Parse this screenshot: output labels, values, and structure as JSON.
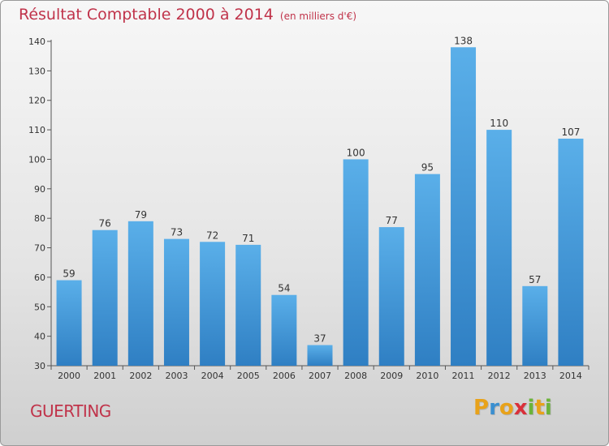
{
  "header": {
    "title": "Résultat Comptable 2000 à 2014",
    "unit": "(en milliers d'€)"
  },
  "footer": {
    "place": "GUERTING",
    "logo_letters": [
      {
        "ch": "P",
        "color": "#e8a21a"
      },
      {
        "ch": "r",
        "color": "#3a8fd0"
      },
      {
        "ch": "o",
        "color": "#e8a21a"
      },
      {
        "ch": "x",
        "color": "#d9303a"
      },
      {
        "ch": "i",
        "color": "#6bb33a"
      },
      {
        "ch": "t",
        "color": "#e8a21a"
      },
      {
        "ch": "i",
        "color": "#6bb33a"
      }
    ]
  },
  "chart_data": {
    "type": "bar",
    "title": "Résultat Comptable 2000 à 2014",
    "subtitle": "(en milliers d'€)",
    "xlabel": "",
    "ylabel": "",
    "categories": [
      "2000",
      "2001",
      "2002",
      "2003",
      "2004",
      "2005",
      "2006",
      "2007",
      "2008",
      "2009",
      "2010",
      "2011",
      "2012",
      "2013",
      "2014"
    ],
    "values": [
      59,
      76,
      79,
      73,
      72,
      71,
      54,
      37,
      100,
      77,
      95,
      138,
      110,
      57,
      107
    ],
    "ylim": [
      30,
      140
    ],
    "yticks": [
      30,
      40,
      50,
      60,
      70,
      80,
      90,
      100,
      110,
      120,
      130,
      140
    ],
    "grid": false,
    "legend": "none",
    "bar_color": "#4a9fe0"
  }
}
